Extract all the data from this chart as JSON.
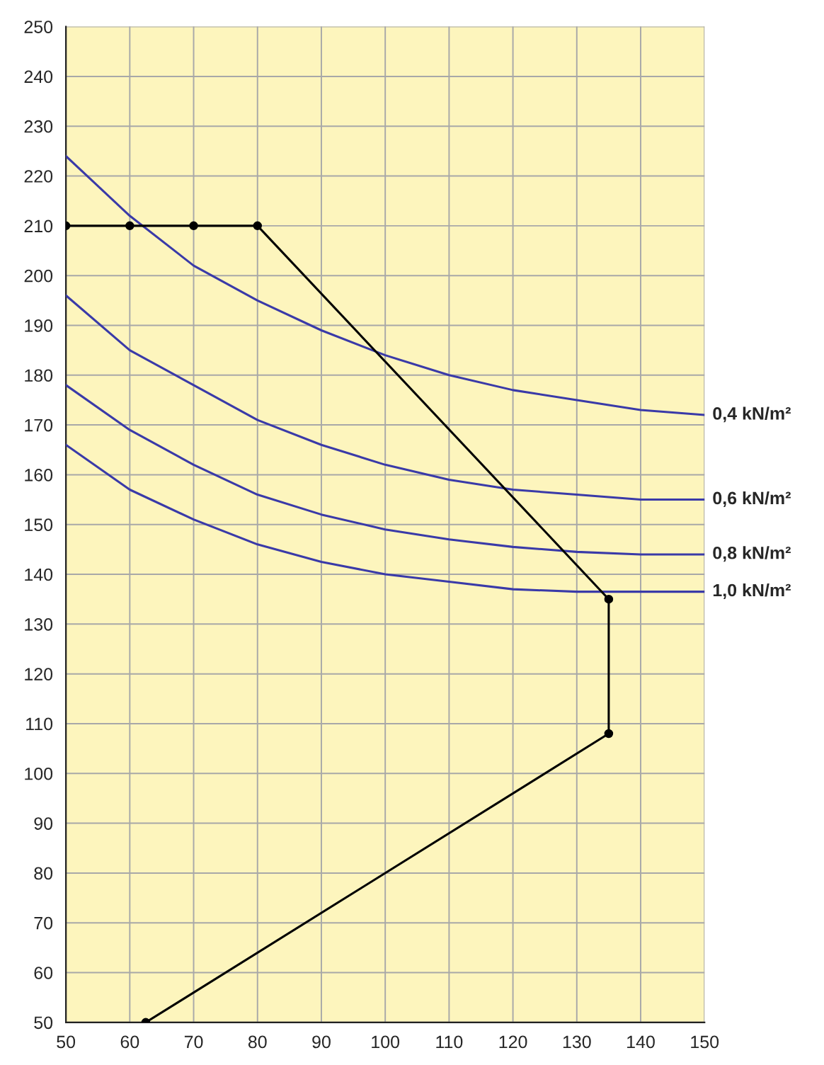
{
  "chart_data": {
    "type": "line",
    "xlim": [
      50,
      150
    ],
    "xticks": [
      50,
      60,
      70,
      80,
      90,
      100,
      110,
      120,
      130,
      140,
      150
    ],
    "ylim": [
      50,
      250
    ],
    "yticks": [
      50,
      60,
      70,
      80,
      90,
      100,
      110,
      120,
      130,
      140,
      150,
      160,
      170,
      180,
      190,
      200,
      210,
      220,
      230,
      240,
      250
    ],
    "grid": true,
    "legend": false,
    "series": [
      {
        "name": "0,4 kN/m²",
        "color": "#3a3aa8",
        "marker": "none",
        "x": [
          50,
          60,
          70,
          80,
          90,
          100,
          110,
          120,
          130,
          140,
          150
        ],
        "values": [
          224,
          212,
          202,
          195,
          189,
          184,
          180,
          177,
          175,
          173,
          172
        ]
      },
      {
        "name": "0,6 kN/m²",
        "color": "#3a3aa8",
        "marker": "none",
        "x": [
          50,
          60,
          70,
          80,
          90,
          100,
          110,
          120,
          130,
          140,
          150
        ],
        "values": [
          196,
          185,
          178,
          171,
          166,
          162,
          159,
          157,
          156,
          155,
          155
        ]
      },
      {
        "name": "0,8 kN/m²",
        "color": "#3a3aa8",
        "marker": "none",
        "x": [
          50,
          60,
          70,
          80,
          90,
          100,
          110,
          120,
          130,
          140,
          150
        ],
        "values": [
          178,
          169,
          162,
          156,
          152,
          149,
          147,
          145.5,
          144.5,
          144,
          144
        ]
      },
      {
        "name": "1,0 kN/m²",
        "color": "#3a3aa8",
        "marker": "none",
        "x": [
          50,
          60,
          70,
          80,
          90,
          100,
          110,
          120,
          130,
          140,
          150
        ],
        "values": [
          166,
          157,
          151,
          146,
          142.5,
          140,
          138.5,
          137,
          136.5,
          136.5,
          136.5
        ]
      },
      {
        "color": "#000000",
        "marker": "circle",
        "x": [
          50,
          60,
          70,
          80,
          135,
          135,
          62.5
        ],
        "values": [
          210,
          210,
          210,
          210,
          135,
          108,
          50
        ]
      }
    ]
  }
}
